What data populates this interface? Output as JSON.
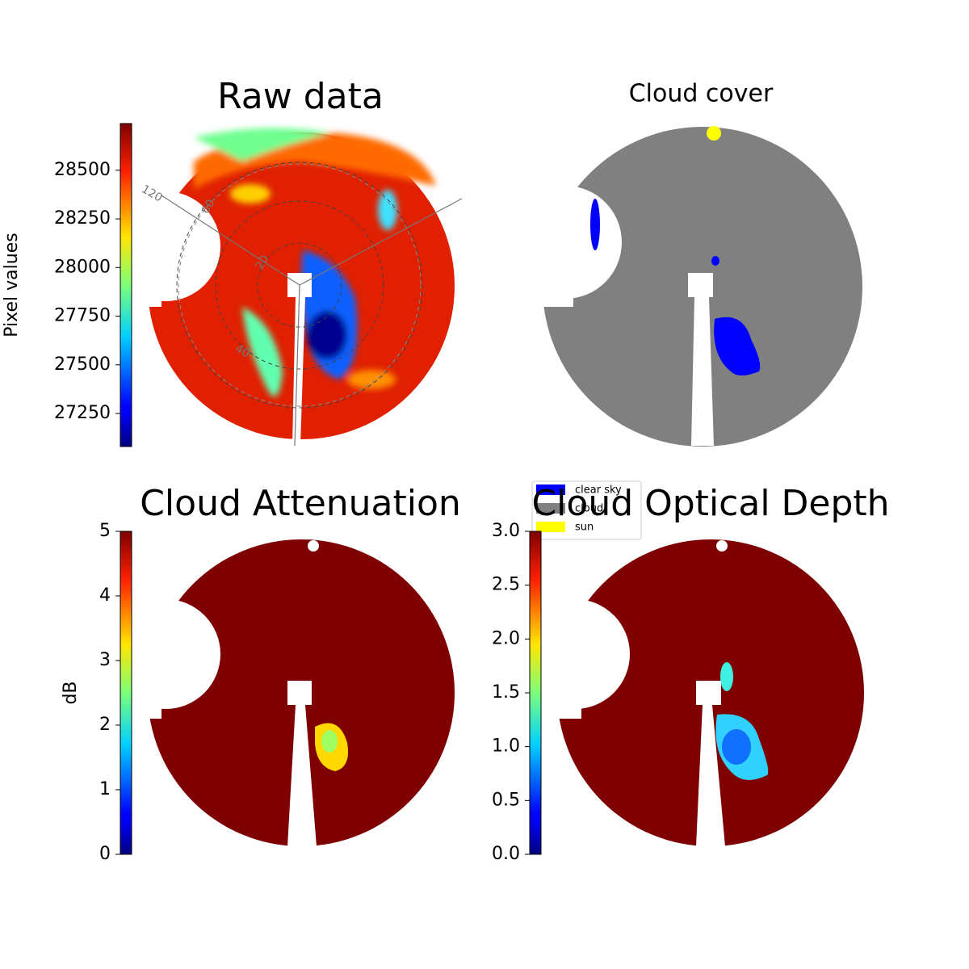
{
  "chart_data": [
    {
      "type": "image",
      "title": "Raw data",
      "polar_labels": [
        "120",
        "60",
        "20",
        "40"
      ],
      "colorbar": {
        "label": "Pixel values",
        "lim": [
          27080,
          28740
        ],
        "ticks": [
          27250,
          27500,
          27750,
          28000,
          28250,
          28500
        ]
      }
    },
    {
      "type": "image",
      "title": "Cloud cover",
      "legend": [
        {
          "name": "clear sky",
          "color": "#0000ff"
        },
        {
          "name": "cloud",
          "color": "#808080"
        },
        {
          "name": "sun",
          "color": "#ffff00"
        }
      ]
    },
    {
      "type": "image",
      "title": "Cloud Attenuation",
      "colorbar": {
        "label": "dB",
        "lim": [
          0,
          5
        ],
        "ticks": [
          0,
          1,
          2,
          3,
          4,
          5
        ]
      }
    },
    {
      "type": "image",
      "title": "Cloud Optical Depth",
      "colorbar": {
        "lim": [
          0,
          3
        ],
        "ticks": [
          {
            "value": 0,
            "label": "0.0"
          },
          {
            "value": 0.5,
            "label": "0.5"
          },
          {
            "value": 1,
            "label": "1.0"
          },
          {
            "value": 1.5,
            "label": "1.5"
          },
          {
            "value": 2,
            "label": "2.0"
          },
          {
            "value": 2.5,
            "label": "2.5"
          },
          {
            "value": 3,
            "label": "3.0"
          }
        ]
      }
    }
  ]
}
